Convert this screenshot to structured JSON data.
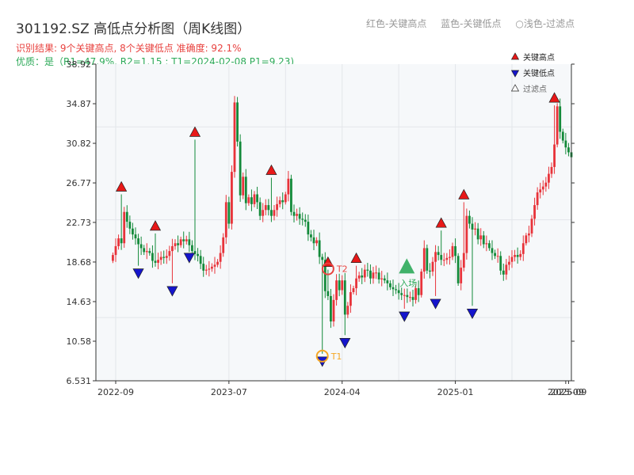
{
  "title": "301192.SZ 高低点分析图（周K线图）",
  "subtitle": "识别结果: 9个关键高点, 8个关键低点  准确度: 92.1%",
  "subtitle2": "优质：是（R1=47.9%, R2=1.15 ; T1=2024-02-08 P1=9.23)",
  "color_legend": {
    "red": "红色-关键高点",
    "blue": "蓝色-关键低点",
    "light": "○浅色-过滤点"
  },
  "colors": {
    "up": "#e8333a",
    "down": "#138a3a",
    "high_marker": "#e81818",
    "low_marker": "#1515cc",
    "t1": "#f5a623",
    "t2": "#e8423f",
    "entry": "#2eaa5a",
    "plot_bg": "#f6f8fa",
    "grid": "#e3e6ea"
  },
  "chart_data": {
    "type": "candlestick",
    "ylim": [
      6.531,
      38.92
    ],
    "y_ticks": [
      6.531,
      10.58,
      14.63,
      18.68,
      22.73,
      26.77,
      30.82,
      34.87,
      38.92
    ],
    "y_tick_labels": [
      "6.531",
      "10.58",
      "14.63",
      "18.68",
      "22.73",
      "26.77",
      "30.82",
      "34.87",
      "38.92"
    ],
    "x_ticks": [
      {
        "label": "2022-09",
        "week": 1
      },
      {
        "label": "2023-07",
        "week": 41
      },
      {
        "label": "2024-04",
        "week": 81
      },
      {
        "label": "2025-01",
        "week": 121
      },
      {
        "label": "2025-09",
        "week": 160
      },
      {
        "label": "2025-09",
        "week": 161
      }
    ],
    "x_range": [
      -6,
      162
    ],
    "legend": [
      "关键高点",
      "关键低点",
      "过滤点"
    ],
    "legend_placement": "top-right",
    "grid": true,
    "close": [
      19.4,
      20.3,
      21.1,
      20.6,
      23.8,
      22.8,
      22.1,
      21.5,
      21.1,
      20.5,
      20.1,
      19.7,
      19.8,
      19.6,
      18.8,
      18.6,
      18.9,
      19.2,
      19.1,
      19.3,
      19.8,
      20.3,
      20.6,
      20.4,
      21.0,
      20.8,
      21.0,
      20.4,
      19.8,
      19.5,
      19.3,
      18.5,
      17.8,
      17.9,
      18.0,
      18.2,
      18.4,
      18.7,
      19.6,
      21.2,
      24.8,
      22.6,
      27.9,
      35.0,
      31.0,
      25.5,
      27.4,
      24.7,
      25.3,
      24.6,
      25.6,
      24.8,
      23.4,
      24.0,
      24.5,
      24.0,
      23.4,
      24.0,
      24.6,
      25.0,
      24.8,
      25.6,
      27.2,
      23.8,
      23.4,
      23.6,
      23.1,
      23.0,
      22.8,
      21.5,
      21.2,
      20.6,
      20.9,
      19.2,
      18.9,
      15.7,
      15.2,
      12.6,
      14.8,
      16.8,
      15.8,
      16.8,
      13.3,
      14.2,
      15.6,
      16.0,
      17.0,
      17.3,
      17.1,
      17.9,
      17.8,
      17.0,
      17.6,
      17.6,
      16.9,
      17.0,
      16.8,
      16.5,
      16.1,
      15.9,
      15.8,
      15.5,
      15.3,
      15.3,
      15.1,
      15.1,
      14.8,
      16.0,
      15.3,
      17.7,
      20.1,
      17.8,
      17.7,
      18.7,
      19.7,
      19.4,
      18.9,
      18.9,
      19.1,
      19.2,
      20.3,
      19.3,
      16.5,
      18.1,
      19.6,
      23.4,
      22.6,
      22.0,
      22.1,
      21.0,
      21.4,
      20.5,
      20.6,
      20.1,
      19.6,
      19.3,
      19.3,
      17.8,
      17.4,
      18.4,
      18.7,
      19.2,
      19.4,
      19.2,
      19.5,
      20.6,
      21.4,
      21.6,
      23.1,
      24.5,
      25.8,
      26.1,
      26.4,
      26.8,
      27.7,
      28.4,
      30.7,
      34.6,
      32.0,
      31.1,
      30.4,
      29.9,
      29.4
    ],
    "key_highs": [
      {
        "week": 3,
        "value": 25.6
      },
      {
        "week": 15,
        "value": 21.6
      },
      {
        "week": 29,
        "value": 31.2
      },
      {
        "week": 56,
        "value": 27.3
      },
      {
        "week": 76,
        "value": 17.9
      },
      {
        "week": 86,
        "value": 18.3
      },
      {
        "week": 116,
        "value": 21.9
      },
      {
        "week": 124,
        "value": 24.8
      },
      {
        "week": 156,
        "value": 34.7
      }
    ],
    "key_lows": [
      {
        "week": 9,
        "value": 18.3
      },
      {
        "week": 21,
        "value": 16.5
      },
      {
        "week": 27,
        "value": 19.9
      },
      {
        "week": 74,
        "value": 9.3
      },
      {
        "week": 82,
        "value": 11.2
      },
      {
        "week": 103,
        "value": 13.9
      },
      {
        "week": 114,
        "value": 15.2
      },
      {
        "week": 127,
        "value": 14.2
      }
    ],
    "annotations": [
      {
        "label": "T1",
        "week": 74,
        "value": 9.3,
        "kind": "circle"
      },
      {
        "label": "T2",
        "week": 76,
        "value": 17.9,
        "kind": "circle"
      },
      {
        "label": "入场",
        "week": 103,
        "value": 18.0,
        "kind": "entry"
      }
    ]
  }
}
